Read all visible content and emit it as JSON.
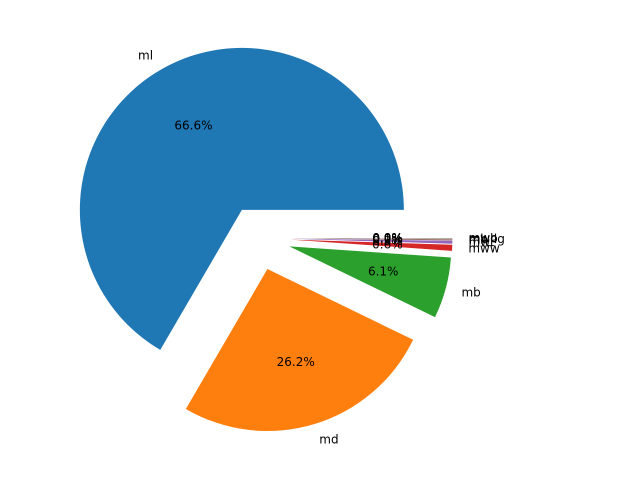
{
  "chart_data": {
    "type": "pie",
    "title": "",
    "legend": "none",
    "start_angle_deg": 0,
    "direction": "counterclockwise",
    "slices": [
      {
        "label": "ml",
        "pct_label": "66.6%",
        "value": 66.6,
        "color": "#1f77b4",
        "exploded": true
      },
      {
        "label": "md",
        "pct_label": "26.2%",
        "value": 26.2,
        "color": "#ff7f0e",
        "exploded": true
      },
      {
        "label": "mb",
        "pct_label": "6.1%",
        "value": 6.1,
        "color": "#2ca02c",
        "exploded": true
      },
      {
        "label": "mww",
        "pct_label": "0.6%",
        "value": 0.6,
        "color": "#d62728",
        "exploded": true
      },
      {
        "label": "mwr",
        "pct_label": "0.3%",
        "value": 0.3,
        "color": "#9467bd",
        "exploded": true
      },
      {
        "label": "mh",
        "pct_label": "0.1%",
        "value": 0.1,
        "color": "#8c564b",
        "exploded": true
      },
      {
        "label": "mb_lg",
        "pct_label": "0.0%",
        "value": 0.04,
        "color": "#e377c2",
        "exploded": true
      },
      {
        "label": "mw",
        "pct_label": "0.0%",
        "value": 0.03,
        "color": "#7f7f7f",
        "exploded": true
      },
      {
        "label": "mwb",
        "pct_label": "0.0%",
        "value": 0.02,
        "color": "#bcbd22",
        "exploded": true
      },
      {
        "label": "mwc",
        "pct_label": "0.0%",
        "value": 0.01,
        "color": "#17becf",
        "exploded": true
      }
    ]
  }
}
